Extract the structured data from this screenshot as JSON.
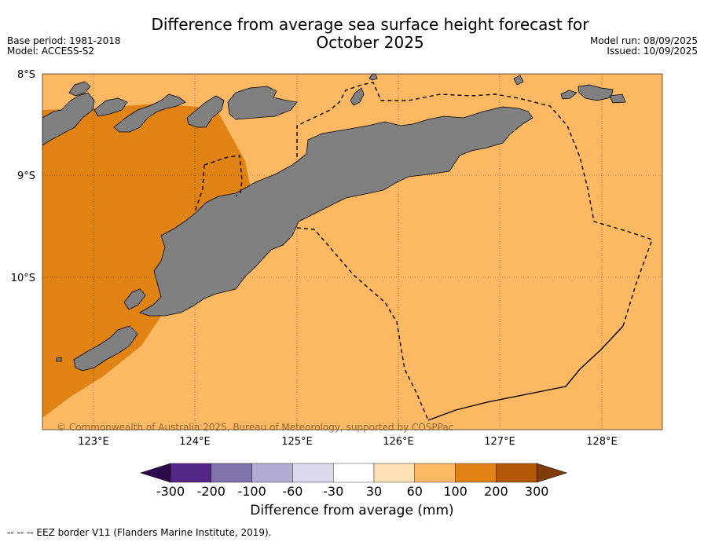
{
  "title_line1": "Difference from average sea surface height forecast for",
  "title_line2": "October 2025",
  "base_period": "Base period: 1981-2018",
  "model": "Model: ACCESS-S2",
  "model_run": "Model run: 08/09/2025",
  "issued": "Issued: 10/09/2025",
  "lat_labels": [
    "8°S",
    "9°S",
    "10°S"
  ],
  "lon_labels": [
    "123°E",
    "124°E",
    "125°E",
    "126°E",
    "127°E",
    "128°E"
  ],
  "copyright": "© Commonwealth of Australia 2025, Bureau of Meteorology, supported by COSPPac",
  "colorbar": {
    "ticks": [
      "-300",
      "-200",
      "-100",
      "-60",
      "-30",
      "30",
      "60",
      "100",
      "200",
      "300"
    ],
    "colors": [
      "#2d0a4b",
      "#542788",
      "#8073ac",
      "#b2abd2",
      "#d8daeb",
      "#ffffff",
      "#fee0b6",
      "#fdb863",
      "#e08214",
      "#b35806",
      "#7f3b08"
    ],
    "label": "Difference from average (mm)"
  },
  "eez_note": "--  --  -- EEZ border V11 (Flanders Marine Institute, 2019).",
  "map_colors": {
    "ocean_light": "#fdb863",
    "ocean_dark": "#e08214",
    "land": "#808080"
  }
}
